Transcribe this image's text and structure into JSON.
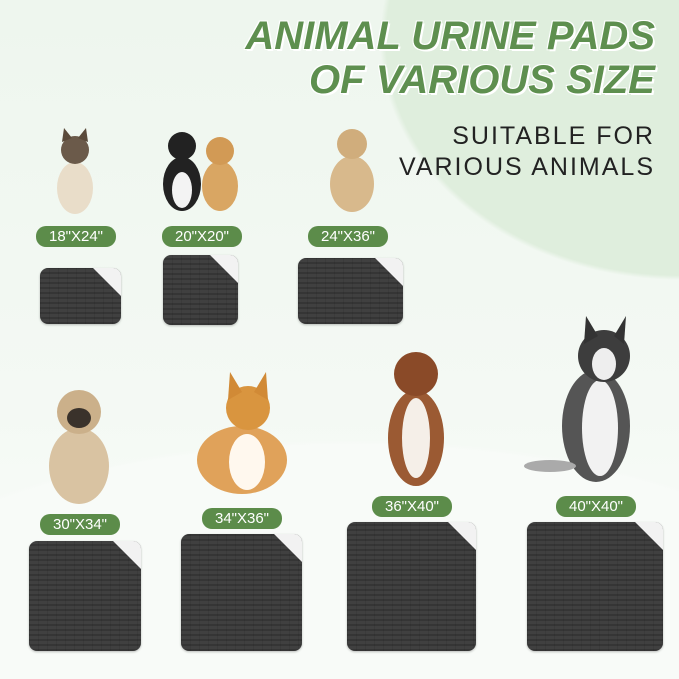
{
  "headline": {
    "line1": "ANIMAL URINE PADS",
    "line2": "OF VARIOUS SIZE"
  },
  "subheadline": {
    "line1": "SUITABLE FOR",
    "line2": "VARIOUS ANIMALS"
  },
  "colors": {
    "accent_green": "#5c8c4a",
    "title_green": "#5e8f4f",
    "pad_gray": "#7b7b7b"
  },
  "products": [
    {
      "size": "18\"X24\"",
      "animal": "siamese-cat"
    },
    {
      "size": "20\"X20\"",
      "animal": "cat-and-puppy"
    },
    {
      "size": "24\"X36\"",
      "animal": "labrador"
    },
    {
      "size": "30\"X34\"",
      "animal": "pug"
    },
    {
      "size": "34\"X36\"",
      "animal": "corgi"
    },
    {
      "size": "36\"X40\"",
      "animal": "australian-shepherd"
    },
    {
      "size": "40\"X40\"",
      "animal": "husky"
    }
  ]
}
